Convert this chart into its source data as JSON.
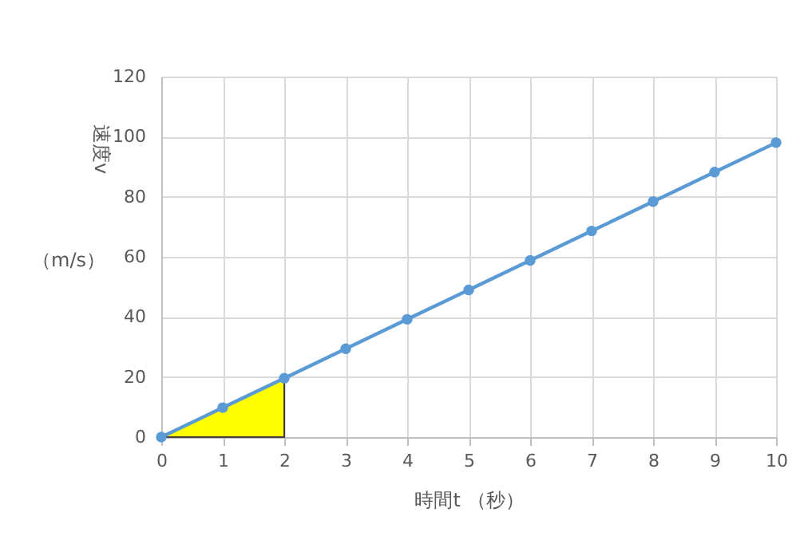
{
  "chart_data": {
    "type": "line",
    "xlabel": "時間t （秒）",
    "ylabel": "速度v",
    "annotations": [
      "（m/s）"
    ],
    "x": [
      0,
      1,
      2,
      3,
      4,
      5,
      6,
      7,
      8,
      9,
      10
    ],
    "series": [
      {
        "type": "area",
        "x": [
          0,
          1,
          2
        ],
        "color": "#ffff00",
        "values": [
          0,
          9.8,
          19.6
        ]
      },
      {
        "color": "#5b9bd5",
        "marker": "circle",
        "values": [
          0,
          9.8,
          19.6,
          29.4,
          39.2,
          49,
          58.8,
          68.6,
          78.4,
          88.2,
          98
        ]
      }
    ],
    "xlim": [
      0,
      10
    ],
    "xticks": [
      0,
      1,
      2,
      3,
      4,
      5,
      6,
      7,
      8,
      9,
      10
    ],
    "ylim": [
      0,
      120
    ],
    "yticks": [
      0,
      20,
      40,
      60,
      80,
      100,
      120
    ],
    "grid": true,
    "line_style": "solid"
  }
}
